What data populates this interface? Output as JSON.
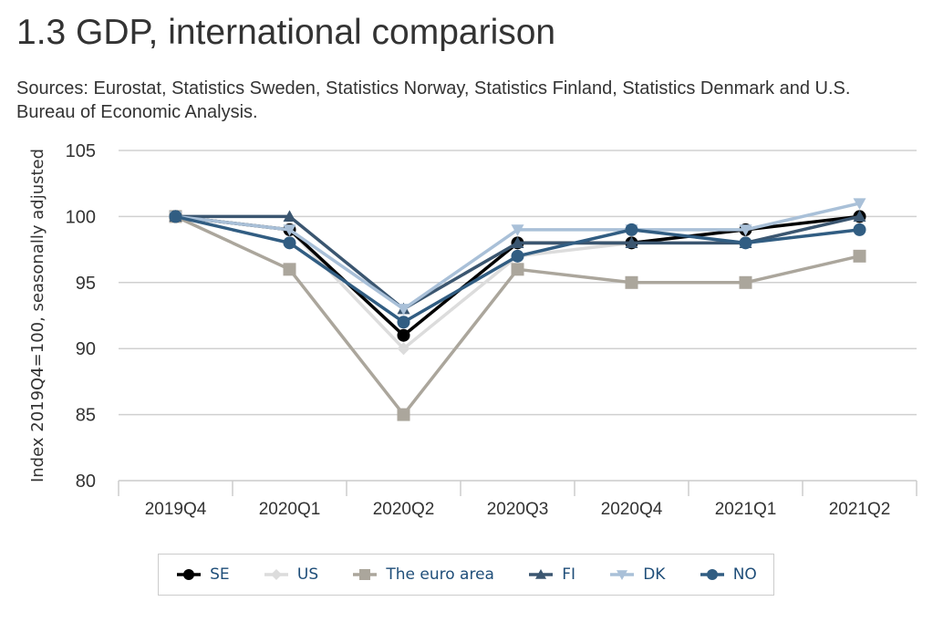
{
  "title": "1.3 GDP, international comparison",
  "subtitle": "Sources: Eurostat, Statistics Sweden, Statistics Norway, Statistics Finland, Statistics Denmark and U.S. Bureau of Economic Analysis.",
  "chart_data": {
    "type": "line",
    "title": "1.3 GDP, international comparison",
    "xlabel": "",
    "ylabel": "Index 2019Q4=100, seasonally adjusted",
    "ylim": [
      80,
      105
    ],
    "yticks": [
      80,
      85,
      90,
      95,
      100,
      105
    ],
    "categories": [
      "2019Q4",
      "2020Q1",
      "2020Q2",
      "2020Q3",
      "2020Q4",
      "2021Q1",
      "2021Q2"
    ],
    "grid": true,
    "legend_position": "bottom",
    "series": [
      {
        "name": "The euro area",
        "color": "#aba69c",
        "marker": "square",
        "values": [
          100,
          96,
          85,
          96,
          95,
          95,
          97
        ]
      },
      {
        "name": "US",
        "color": "#dcdcdc",
        "marker": "diamond",
        "values": [
          100,
          99,
          90,
          97,
          98,
          99,
          100
        ]
      },
      {
        "name": "SE",
        "color": "#000000",
        "marker": "circle",
        "values": [
          100,
          99,
          91,
          98,
          98,
          99,
          100
        ]
      },
      {
        "name": "FI",
        "color": "#3b5670",
        "marker": "triangle",
        "values": [
          100,
          100,
          93,
          98,
          98,
          98,
          100
        ]
      },
      {
        "name": "DK",
        "color": "#a9c0d8",
        "marker": "triangle-down",
        "values": [
          100,
          99,
          93,
          99,
          99,
          99,
          101
        ]
      },
      {
        "name": "NO",
        "color": "#315d82",
        "marker": "circle",
        "values": [
          100,
          98,
          92,
          97,
          99,
          98,
          99
        ]
      }
    ],
    "legend_order": [
      "SE",
      "US",
      "The euro area",
      "FI",
      "DK",
      "NO"
    ]
  }
}
